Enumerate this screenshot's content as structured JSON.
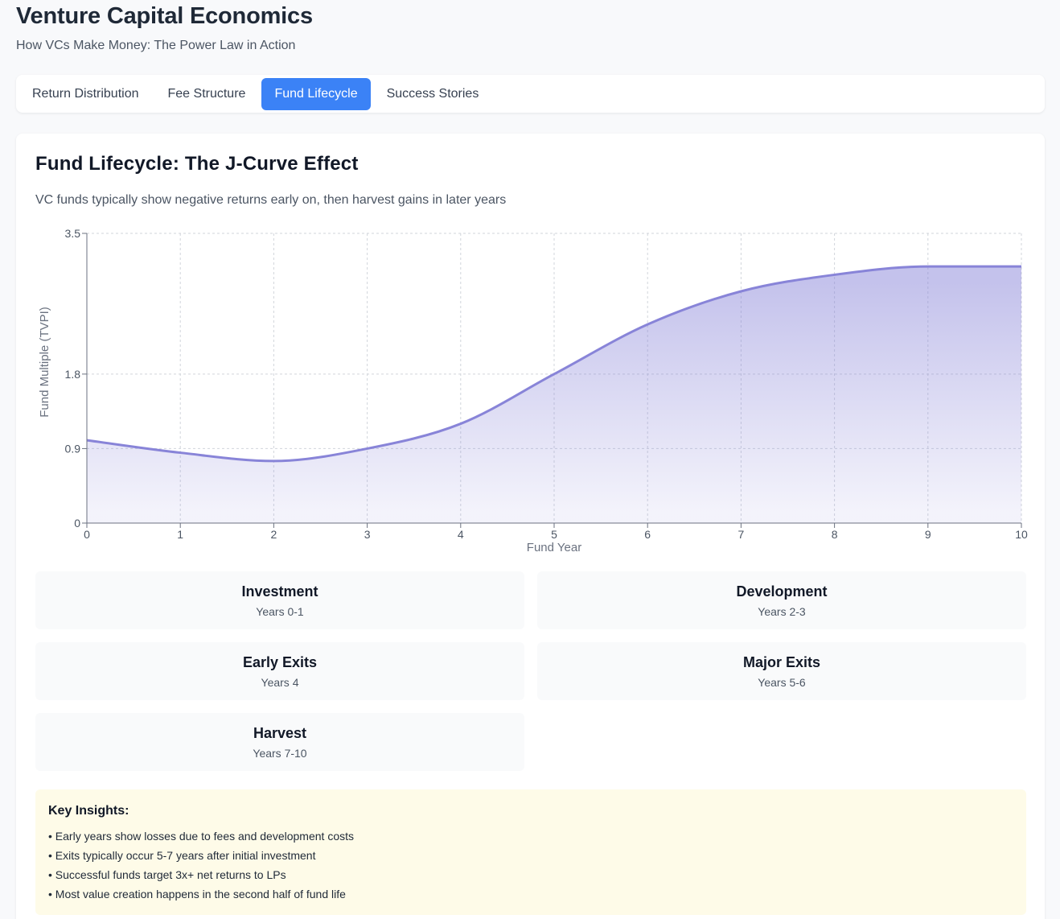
{
  "header": {
    "title": "Venture Capital Economics",
    "subtitle": "How VCs Make Money: The Power Law in Action"
  },
  "tabs": [
    {
      "label": "Return Distribution",
      "active": false
    },
    {
      "label": "Fee Structure",
      "active": false
    },
    {
      "label": "Fund Lifecycle",
      "active": true
    },
    {
      "label": "Success Stories",
      "active": false
    }
  ],
  "card": {
    "title": "Fund Lifecycle: The J-Curve Effect",
    "description": "VC funds typically show negative returns early on, then harvest gains in later years"
  },
  "chart_data": {
    "type": "area",
    "xlabel": "Fund Year",
    "ylabel": "Fund Multiple (TVPI)",
    "x": [
      0,
      1,
      2,
      3,
      4,
      5,
      6,
      7,
      8,
      9,
      10
    ],
    "series": [
      {
        "values": [
          1.0,
          0.85,
          0.75,
          0.9,
          1.2,
          1.8,
          2.4,
          2.8,
          3.0,
          3.1,
          3.1
        ]
      }
    ],
    "xlim": [
      0,
      10
    ],
    "ylim": [
      0,
      3.5
    ],
    "xticks": [
      "0",
      "1",
      "2",
      "3",
      "4",
      "5",
      "6",
      "7",
      "8",
      "9",
      "10"
    ],
    "yticks": [
      0,
      0.9,
      1.8,
      3.5
    ],
    "ytick_labels": [
      "0",
      "0.9",
      "1.8",
      "3.5"
    ],
    "grid": true,
    "line_color": "#8884d8",
    "fill_color": "#8884d8"
  },
  "phases": [
    {
      "name": "Investment",
      "years": "Years 0-1"
    },
    {
      "name": "Development",
      "years": "Years 2-3"
    },
    {
      "name": "Early Exits",
      "years": "Years 4"
    },
    {
      "name": "Major Exits",
      "years": "Years 5-6"
    },
    {
      "name": "Harvest",
      "years": "Years 7-10"
    }
  ],
  "insights": {
    "title": "Key Insights:",
    "items": [
      "Early years show losses due to fees and development costs",
      "Exits typically occur 5-7 years after initial investment",
      "Successful funds target 3x+ net returns to LPs",
      "Most value creation happens in the second half of fund life"
    ]
  }
}
